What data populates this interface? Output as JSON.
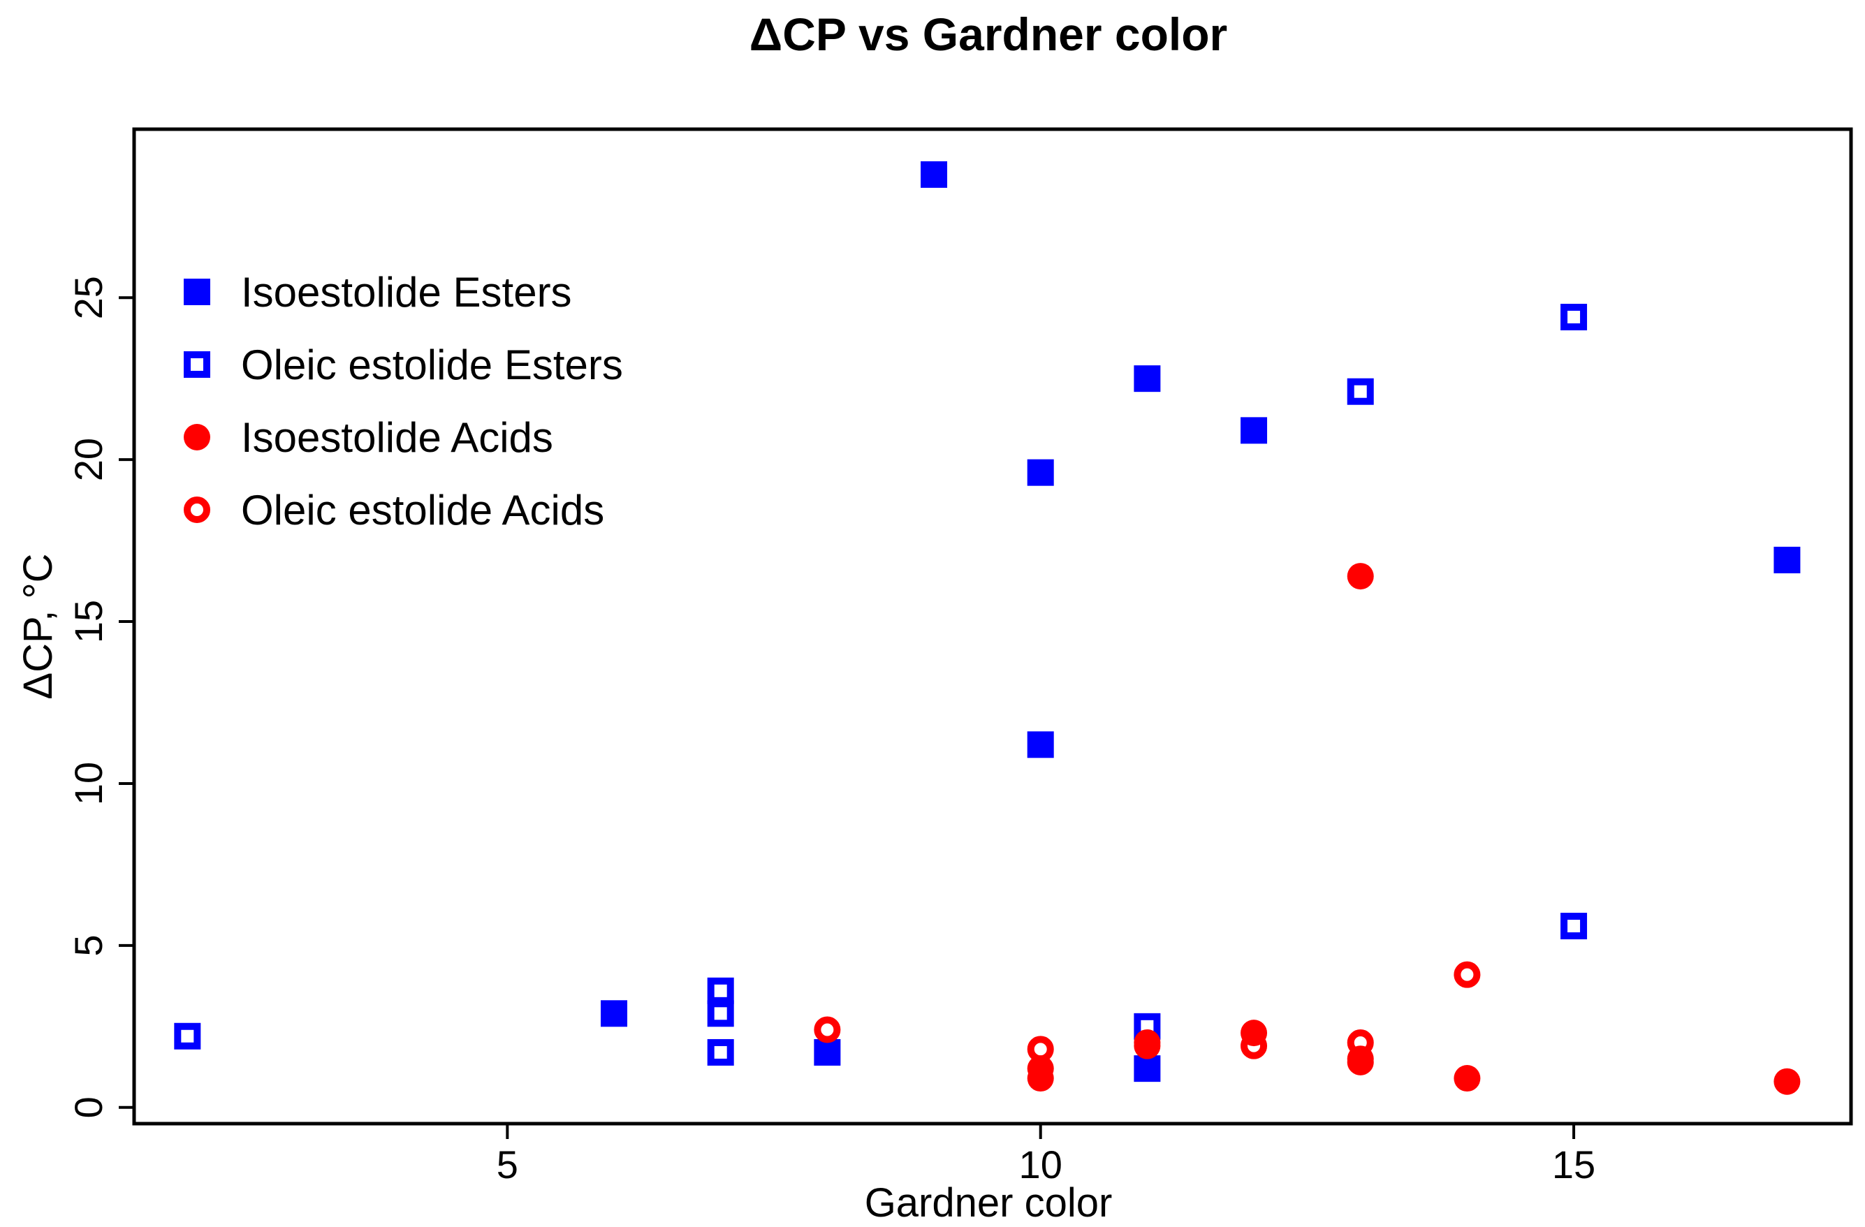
{
  "chart_data": {
    "type": "scatter",
    "title": "ΔCP vs Gardner color",
    "xlabel": "Gardner color",
    "ylabel": "ΔCP, °C",
    "xlim": [
      1.5,
      17.6
    ],
    "ylim": [
      -0.5,
      30.2
    ],
    "xticks": [
      5,
      10,
      15
    ],
    "yticks": [
      0,
      5,
      10,
      15,
      20,
      25
    ],
    "grid": false,
    "legend_position": "top-left",
    "series": [
      {
        "name": "Isoestolide Esters",
        "marker": "square-filled",
        "color": "#0000FF",
        "points": [
          [
            9,
            28.8
          ],
          [
            10,
            19.6
          ],
          [
            10,
            11.2
          ],
          [
            11,
            22.5
          ],
          [
            11,
            1.2
          ],
          [
            12,
            20.9
          ],
          [
            17,
            16.9
          ],
          [
            6,
            2.9
          ],
          [
            8,
            1.7
          ]
        ]
      },
      {
        "name": "Oleic estolide Esters",
        "marker": "square-open",
        "color": "#0000FF",
        "points": [
          [
            2,
            2.2
          ],
          [
            7,
            3.6
          ],
          [
            7,
            2.9
          ],
          [
            7,
            1.7
          ],
          [
            11,
            2.5
          ],
          [
            13,
            22.1
          ],
          [
            15,
            24.4
          ],
          [
            15,
            5.6
          ]
        ]
      },
      {
        "name": "Isoestolide Acids",
        "marker": "circle-filled",
        "color": "#FF0000",
        "points": [
          [
            13,
            16.4
          ],
          [
            10,
            0.9
          ],
          [
            10,
            1.2
          ],
          [
            11,
            1.9
          ],
          [
            12,
            2.3
          ],
          [
            13,
            1.5
          ],
          [
            14,
            0.9
          ],
          [
            17,
            0.8
          ]
        ]
      },
      {
        "name": "Oleic estolide Acids",
        "marker": "circle-open",
        "color": "#FF0000",
        "points": [
          [
            8,
            2.4
          ],
          [
            10,
            1.8
          ],
          [
            11,
            2.0
          ],
          [
            12,
            1.9
          ],
          [
            13,
            2.0
          ],
          [
            13,
            1.4
          ],
          [
            14,
            4.1
          ]
        ]
      }
    ]
  }
}
